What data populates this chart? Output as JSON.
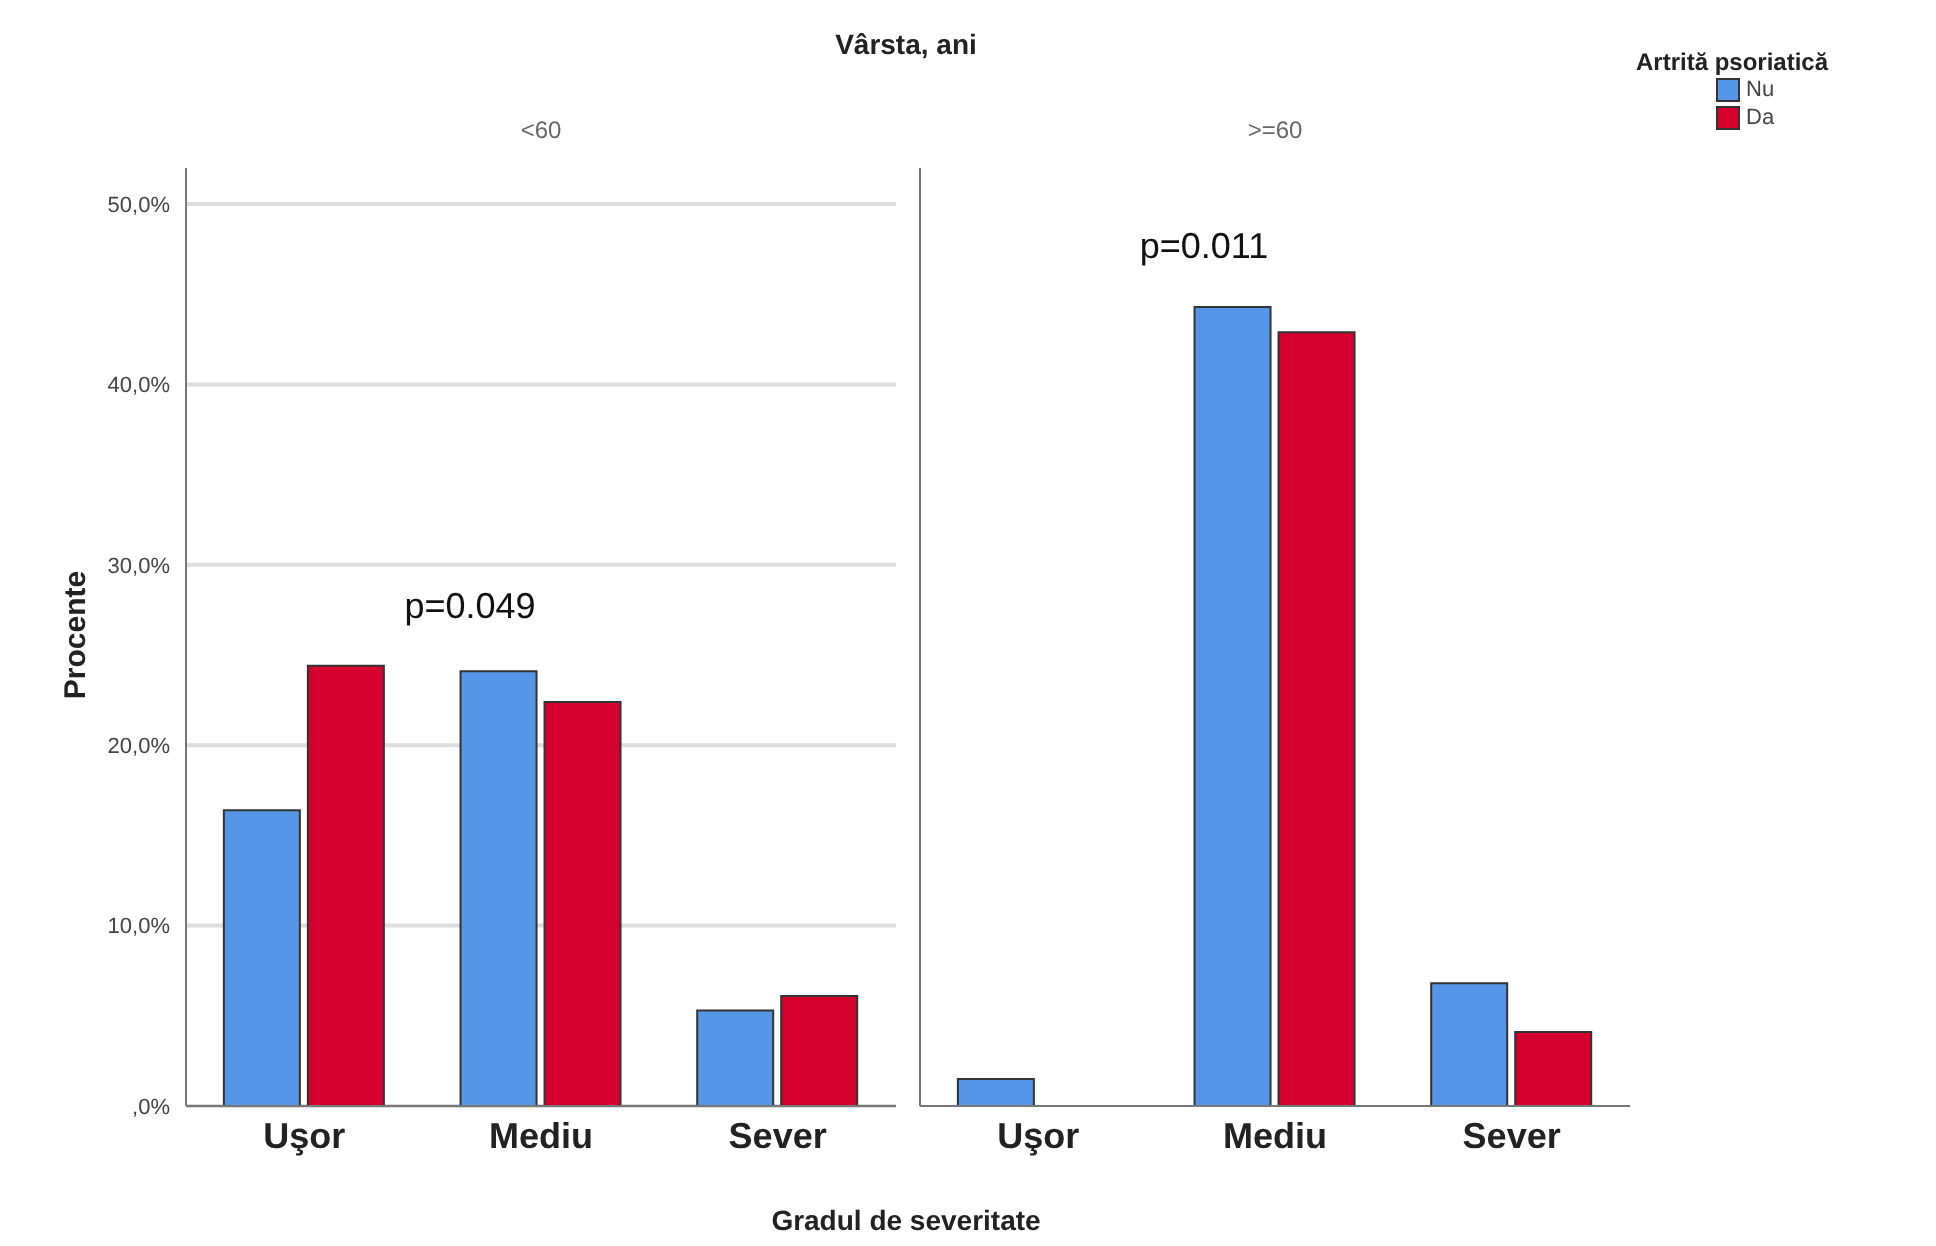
{
  "chart_data": [
    {
      "type": "bar",
      "title": "Vârsta, ani",
      "subtitle": "<60",
      "xlabel": "Gradul de severitate",
      "ylabel": "Procente",
      "categories": [
        "Uşor",
        "Mediu",
        "Sever"
      ],
      "series": [
        {
          "name": "Nu",
          "color": "#5596e6",
          "values": [
            16.4,
            24.1,
            5.3
          ]
        },
        {
          "name": "Da",
          "color": "#d6002e",
          "values": [
            24.4,
            22.4,
            6.1
          ]
        }
      ],
      "ylim": [
        0,
        52
      ],
      "yticks": [
        {
          "value": 0,
          "label": ",0%"
        },
        {
          "value": 10,
          "label": "10,0%"
        },
        {
          "value": 20,
          "label": "20,0%"
        },
        {
          "value": 30,
          "label": "30,0%"
        },
        {
          "value": 40,
          "label": "40,0%"
        },
        {
          "value": 50,
          "label": "50,0%"
        }
      ],
      "grid": "y",
      "annotations": [
        "p=0.049"
      ],
      "legend": "top right",
      "legend_title": "Artrită psoriatică"
    },
    {
      "type": "bar",
      "subtitle": ">=60",
      "categories": [
        "Uşor",
        "Mediu",
        "Sever"
      ],
      "series": [
        {
          "color": "#5596e6",
          "values": [
            1.5,
            44.3,
            6.8
          ]
        },
        {
          "color": "#d6002e",
          "values": [
            0,
            42.9,
            4.1
          ]
        }
      ],
      "ylim": [
        0,
        52
      ],
      "yticks": [
        {
          "value": 0,
          "label": null
        },
        {
          "value": 10,
          "label": null
        },
        {
          "value": 20,
          "label": null
        },
        {
          "value": 30,
          "label": null
        },
        {
          "value": 40,
          "label": null
        },
        {
          "value": 50,
          "label": null
        }
      ],
      "grid": "y",
      "tick_labels": "x",
      "annotations": [
        "p=0.011"
      ]
    }
  ]
}
